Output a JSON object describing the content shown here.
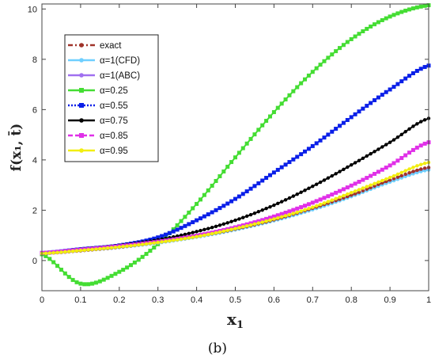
{
  "caption": "(b)",
  "chart_data": {
    "type": "line",
    "xlabel": "x",
    "xlabel_sub": "1",
    "ylabel": "f(x₁, t̄)",
    "xlim": [
      0,
      1
    ],
    "ylim": [
      -1.2,
      10.2
    ],
    "xticks": [
      "0",
      "0.1",
      "0.2",
      "0.3",
      "0.4",
      "0.5",
      "0.6",
      "0.7",
      "0.8",
      "0.9",
      "1"
    ],
    "yticks": [
      "0",
      "2",
      "4",
      "6",
      "8",
      "10"
    ],
    "grid": false,
    "legend_position": "top-left",
    "x": [
      0,
      0.1,
      0.2,
      0.3,
      0.4,
      0.5,
      0.6,
      0.7,
      0.8,
      0.9,
      1.0
    ],
    "series": [
      {
        "name": "exact",
        "color": "#a0342a",
        "dash": "6,3,2,3",
        "marker": "dot",
        "values": [
          0.28,
          0.39,
          0.53,
          0.72,
          0.95,
          1.25,
          1.62,
          2.08,
          2.6,
          3.2,
          3.7
        ]
      },
      {
        "name": "α=1(CFD)",
        "color": "#6fcfff",
        "dash": "",
        "marker": "dot",
        "values": [
          0.28,
          0.39,
          0.52,
          0.7,
          0.93,
          1.22,
          1.58,
          2.02,
          2.54,
          3.12,
          3.6
        ]
      },
      {
        "name": "α=1(ABC)",
        "color": "#a070f0",
        "dash": "",
        "marker": "dot",
        "values": [
          0.28,
          0.39,
          0.53,
          0.71,
          0.94,
          1.24,
          1.6,
          2.05,
          2.57,
          3.16,
          3.65
        ]
      },
      {
        "name": "α=0.25",
        "color": "#44dd33",
        "dash": "",
        "marker": "square",
        "values": [
          0.25,
          -0.92,
          -0.45,
          0.65,
          2.25,
          4.1,
          5.9,
          7.5,
          8.8,
          9.7,
          10.15
        ]
      },
      {
        "name": "α=0.55",
        "color": "#0a1fe8",
        "dash": "2,2",
        "marker": "square",
        "values": [
          0.3,
          0.45,
          0.6,
          0.92,
          1.6,
          2.45,
          3.5,
          4.55,
          5.7,
          6.8,
          7.75
        ]
      },
      {
        "name": "α=0.75",
        "color": "#000000",
        "dash": "",
        "marker": "dot",
        "values": [
          0.3,
          0.45,
          0.6,
          0.82,
          1.15,
          1.6,
          2.2,
          2.95,
          3.8,
          4.7,
          5.65
        ]
      },
      {
        "name": "α=0.85",
        "color": "#e030e8",
        "dash": "6,3",
        "marker": "square",
        "values": [
          0.3,
          0.43,
          0.57,
          0.75,
          0.99,
          1.32,
          1.75,
          2.3,
          2.98,
          3.78,
          4.7
        ]
      },
      {
        "name": "α=0.95",
        "color": "#f2ee10",
        "dash": "",
        "marker": "dot",
        "values": [
          0.28,
          0.4,
          0.54,
          0.72,
          0.95,
          1.27,
          1.65,
          2.12,
          2.7,
          3.3,
          3.9
        ]
      }
    ]
  }
}
